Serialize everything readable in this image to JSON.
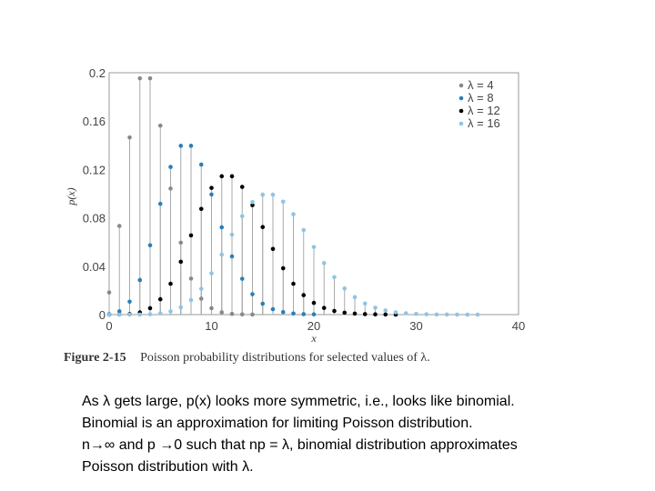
{
  "chart_data": {
    "type": "scatter",
    "style": "stem",
    "xlabel": "x",
    "ylabel": "p(x)",
    "xlim": [
      0,
      40
    ],
    "ylim": [
      0,
      0.2
    ],
    "xticks": [
      "0",
      "10",
      "20",
      "30",
      "40"
    ],
    "yticks": [
      "0",
      "0.04",
      "0.08",
      "0.12",
      "0.16",
      "0.2"
    ],
    "legend_position": "top-right",
    "series": [
      {
        "name": "λ = 4",
        "color": "#888888",
        "x": [
          0,
          1,
          2,
          3,
          4,
          5,
          6,
          7,
          8,
          9,
          10,
          11,
          12,
          13,
          14
        ],
        "y": [
          0.0183,
          0.0733,
          0.1465,
          0.1954,
          0.1954,
          0.1563,
          0.1042,
          0.0595,
          0.0298,
          0.0132,
          0.0053,
          0.0019,
          0.0006,
          0.0002,
          0.0001
        ]
      },
      {
        "name": "λ = 8",
        "color": "#2a7fb8",
        "x": [
          0,
          1,
          2,
          3,
          4,
          5,
          6,
          7,
          8,
          9,
          10,
          11,
          12,
          13,
          14,
          15,
          16,
          17,
          18,
          19,
          20
        ],
        "y": [
          0.0003,
          0.0027,
          0.0107,
          0.0286,
          0.0573,
          0.0916,
          0.1221,
          0.1396,
          0.1396,
          0.1241,
          0.0993,
          0.0722,
          0.0481,
          0.0296,
          0.0169,
          0.009,
          0.0045,
          0.0021,
          0.0009,
          0.0004,
          0.0002
        ]
      },
      {
        "name": "λ = 12",
        "color": "#000000",
        "x": [
          0,
          1,
          2,
          3,
          4,
          5,
          6,
          7,
          8,
          9,
          10,
          11,
          12,
          13,
          14,
          15,
          16,
          17,
          18,
          19,
          20,
          21,
          22,
          23,
          24,
          25,
          26,
          27,
          28
        ],
        "y": [
          0.0,
          0.0001,
          0.0004,
          0.0018,
          0.0053,
          0.0127,
          0.0255,
          0.0437,
          0.0655,
          0.0874,
          0.1048,
          0.1144,
          0.1144,
          0.1056,
          0.0905,
          0.0724,
          0.0543,
          0.0383,
          0.0255,
          0.0161,
          0.0097,
          0.0055,
          0.003,
          0.0016,
          0.0008,
          0.0004,
          0.0002,
          0.0001,
          0.0
        ]
      },
      {
        "name": "λ = 16",
        "color": "#8ec4e6",
        "x": [
          0,
          1,
          2,
          3,
          4,
          5,
          6,
          7,
          8,
          9,
          10,
          11,
          12,
          13,
          14,
          15,
          16,
          17,
          18,
          19,
          20,
          21,
          22,
          23,
          24,
          25,
          26,
          27,
          28,
          29,
          30,
          31,
          32,
          33,
          34,
          35,
          36
        ],
        "y": [
          0.0,
          0.0,
          0.0,
          0.0001,
          0.0003,
          0.001,
          0.0026,
          0.006,
          0.012,
          0.0213,
          0.0341,
          0.0496,
          0.0661,
          0.0814,
          0.093,
          0.0992,
          0.0992,
          0.0934,
          0.083,
          0.0699,
          0.0559,
          0.0426,
          0.031,
          0.0216,
          0.0144,
          0.0092,
          0.0057,
          0.0034,
          0.0019,
          0.0011,
          0.0006,
          0.0003,
          0.0001,
          0.0001,
          0.0,
          0.0,
          0.0
        ]
      }
    ]
  },
  "caption": {
    "figure_label": "Figure 2-15",
    "text": "Poisson probability distributions for selected values of λ."
  },
  "notes": [
    "As λ gets large, p(x) looks more symmetric, i.e., looks like binomial.",
    "Binomial is an approximation for limiting Poisson distribution.",
    "n→∞ and p →0 such that np = λ, binomial distribution approximates",
    "Poisson distribution with λ."
  ]
}
